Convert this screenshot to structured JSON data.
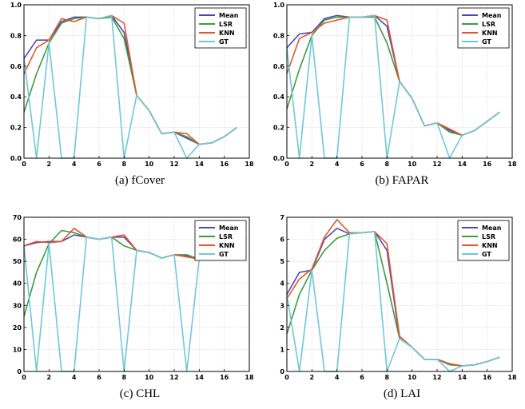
{
  "chart_data": [
    {
      "type": "line",
      "caption": "(a) fCover",
      "xlim": [
        0,
        18
      ],
      "ylim": [
        0,
        1.0
      ],
      "xticks": [
        0,
        2,
        4,
        6,
        8,
        10,
        12,
        14,
        16,
        18
      ],
      "yticks": [
        0.0,
        0.2,
        0.4,
        0.6,
        0.8,
        1.0
      ],
      "ytick_labels": [
        "0.0",
        "0.2",
        "0.4",
        "0.6",
        "0.8",
        "1.0"
      ],
      "legend": "top-right",
      "grid": true,
      "series": [
        {
          "name": "Mean",
          "color": "#4a4ab8",
          "x": [
            0,
            1,
            2,
            3,
            4,
            5,
            6,
            7,
            8,
            9,
            10,
            11,
            12,
            13,
            14,
            15,
            16,
            17
          ],
          "y": [
            0.65,
            0.77,
            0.77,
            0.89,
            0.92,
            0.92,
            0.91,
            0.93,
            0.82,
            0.41,
            0.31,
            0.16,
            0.17,
            0.13,
            0.09,
            0.1,
            0.14,
            0.2
          ]
        },
        {
          "name": "LSR",
          "color": "#3f9a3f",
          "x": [
            0,
            1,
            2,
            3,
            4,
            5,
            6,
            7,
            8,
            9,
            10,
            11,
            12,
            13,
            14,
            15,
            16,
            17
          ],
          "y": [
            0.3,
            0.55,
            0.75,
            0.88,
            0.91,
            0.92,
            0.91,
            0.92,
            0.78,
            0.41,
            0.31,
            0.16,
            0.17,
            0.14,
            0.09,
            0.1,
            0.14,
            0.2
          ]
        },
        {
          "name": "KNN",
          "color": "#e4552f",
          "x": [
            0,
            1,
            2,
            3,
            4,
            5,
            6,
            7,
            8,
            9,
            10,
            11,
            12,
            13,
            14,
            15,
            16,
            17
          ],
          "y": [
            0.55,
            0.72,
            0.77,
            0.91,
            0.89,
            0.92,
            0.91,
            0.93,
            0.88,
            0.41,
            0.31,
            0.16,
            0.17,
            0.16,
            0.09,
            0.1,
            0.14,
            0.2
          ]
        },
        {
          "name": "GT",
          "color": "#6fc8d8",
          "x": [
            0,
            1,
            2,
            3,
            4,
            5,
            6,
            7,
            8,
            9,
            10,
            11,
            12,
            13,
            14,
            15,
            16,
            17
          ],
          "y": [
            0.65,
            0.0,
            0.75,
            0.0,
            0.0,
            0.92,
            0.91,
            0.93,
            0.0,
            0.41,
            0.31,
            0.16,
            0.17,
            0.0,
            0.09,
            0.1,
            0.14,
            0.2
          ]
        }
      ]
    },
    {
      "type": "line",
      "caption": "(b) FAPAR",
      "xlim": [
        0,
        18
      ],
      "ylim": [
        0,
        1.0
      ],
      "xticks": [
        0,
        2,
        4,
        6,
        8,
        10,
        12,
        14,
        16,
        18
      ],
      "yticks": [
        0.0,
        0.2,
        0.4,
        0.6,
        0.8,
        1.0
      ],
      "ytick_labels": [
        "0.0",
        "0.2",
        "0.4",
        "0.6",
        "0.8",
        "1.0"
      ],
      "legend": "top-right",
      "grid": true,
      "series": [
        {
          "name": "Mean",
          "color": "#4a4ab8",
          "x": [
            0,
            1,
            2,
            3,
            4,
            5,
            6,
            7,
            8,
            9,
            10,
            11,
            12,
            13,
            14,
            15,
            16,
            17
          ],
          "y": [
            0.72,
            0.81,
            0.82,
            0.91,
            0.93,
            0.92,
            0.92,
            0.93,
            0.86,
            0.5,
            0.39,
            0.21,
            0.23,
            0.18,
            0.15,
            0.18,
            0.24,
            0.3
          ]
        },
        {
          "name": "LSR",
          "color": "#3f9a3f",
          "x": [
            0,
            1,
            2,
            3,
            4,
            5,
            6,
            7,
            8,
            9,
            10,
            11,
            12,
            13,
            14,
            15,
            16,
            17
          ],
          "y": [
            0.32,
            0.58,
            0.8,
            0.9,
            0.92,
            0.92,
            0.92,
            0.92,
            0.75,
            0.5,
            0.39,
            0.21,
            0.23,
            0.17,
            0.15,
            0.18,
            0.24,
            0.3
          ]
        },
        {
          "name": "KNN",
          "color": "#e4552f",
          "x": [
            0,
            1,
            2,
            3,
            4,
            5,
            6,
            7,
            8,
            9,
            10,
            11,
            12,
            13,
            14,
            15,
            16,
            17
          ],
          "y": [
            0.55,
            0.78,
            0.82,
            0.88,
            0.9,
            0.92,
            0.92,
            0.93,
            0.9,
            0.5,
            0.39,
            0.21,
            0.23,
            0.19,
            0.15,
            0.18,
            0.24,
            0.3
          ]
        },
        {
          "name": "GT",
          "color": "#6fc8d8",
          "x": [
            0,
            1,
            2,
            3,
            4,
            5,
            6,
            7,
            8,
            9,
            10,
            11,
            12,
            13,
            14,
            15,
            16,
            17
          ],
          "y": [
            0.72,
            0.0,
            0.8,
            0.0,
            0.0,
            0.92,
            0.92,
            0.93,
            0.0,
            0.5,
            0.39,
            0.21,
            0.23,
            0.0,
            0.15,
            0.18,
            0.24,
            0.3
          ]
        }
      ]
    },
    {
      "type": "line",
      "caption": "(c) CHL",
      "xlim": [
        0,
        18
      ],
      "ylim": [
        0,
        70
      ],
      "xticks": [
        0,
        2,
        4,
        6,
        8,
        10,
        12,
        14,
        16,
        18
      ],
      "yticks": [
        0,
        10,
        20,
        30,
        40,
        50,
        60,
        70
      ],
      "ytick_labels": [
        "0",
        "10",
        "20",
        "30",
        "40",
        "50",
        "60",
        "70"
      ],
      "legend": "top-right",
      "grid": true,
      "series": [
        {
          "name": "Mean",
          "color": "#4a4ab8",
          "x": [
            0,
            1,
            2,
            3,
            4,
            5,
            6,
            7,
            8,
            9,
            10,
            11,
            12,
            13,
            14,
            15,
            16,
            17
          ],
          "y": [
            57,
            58.5,
            59,
            59,
            62,
            61,
            60,
            61,
            61,
            55,
            54,
            51.5,
            53,
            52.5,
            51,
            51,
            51,
            51
          ]
        },
        {
          "name": "LSR",
          "color": "#3f9a3f",
          "x": [
            0,
            1,
            2,
            3,
            4,
            5,
            6,
            7,
            8,
            9,
            10,
            11,
            12,
            13,
            14,
            15,
            16,
            17
          ],
          "y": [
            25,
            45,
            58,
            64,
            63,
            61,
            60,
            61,
            57,
            55,
            54,
            51.5,
            53,
            53,
            51,
            51,
            51,
            51
          ]
        },
        {
          "name": "KNN",
          "color": "#e4552f",
          "x": [
            0,
            1,
            2,
            3,
            4,
            5,
            6,
            7,
            8,
            9,
            10,
            11,
            12,
            13,
            14,
            15,
            16,
            17
          ],
          "y": [
            57,
            59,
            58.5,
            59,
            65,
            61,
            60,
            61,
            62,
            55,
            54,
            51.5,
            53,
            52,
            51,
            51,
            51,
            51
          ]
        },
        {
          "name": "GT",
          "color": "#6fc8d8",
          "x": [
            0,
            1,
            2,
            3,
            4,
            5,
            6,
            7,
            8,
            9,
            10,
            11,
            12,
            13,
            14,
            15,
            16,
            17
          ],
          "y": [
            57,
            0,
            58,
            0,
            0,
            61,
            60,
            61,
            0,
            55,
            54,
            51.5,
            53,
            0,
            51,
            51,
            51,
            51
          ]
        }
      ]
    },
    {
      "type": "line",
      "caption": "(d) LAI",
      "xlim": [
        0,
        18
      ],
      "ylim": [
        0,
        7
      ],
      "xticks": [
        0,
        2,
        4,
        6,
        8,
        10,
        12,
        14,
        16,
        18
      ],
      "yticks": [
        0,
        1,
        2,
        3,
        4,
        5,
        6,
        7
      ],
      "ytick_labels": [
        "0",
        "1",
        "2",
        "3",
        "4",
        "5",
        "6",
        "7"
      ],
      "legend": "top-right",
      "grid": true,
      "series": [
        {
          "name": "Mean",
          "color": "#4a4ab8",
          "x": [
            0,
            1,
            2,
            3,
            4,
            5,
            6,
            7,
            8,
            9,
            10,
            11,
            12,
            13,
            14,
            15,
            16,
            17
          ],
          "y": [
            3.5,
            4.5,
            4.6,
            6.0,
            6.5,
            6.25,
            6.3,
            6.35,
            5.5,
            1.5,
            1.1,
            0.55,
            0.55,
            0.35,
            0.25,
            0.3,
            0.45,
            0.65
          ]
        },
        {
          "name": "LSR",
          "color": "#3f9a3f",
          "x": [
            0,
            1,
            2,
            3,
            4,
            5,
            6,
            7,
            8,
            9,
            10,
            11,
            12,
            13,
            14,
            15,
            16,
            17
          ],
          "y": [
            1.7,
            3.5,
            4.6,
            5.5,
            6.05,
            6.25,
            6.3,
            6.35,
            4.0,
            1.5,
            1.1,
            0.55,
            0.55,
            0.3,
            0.25,
            0.3,
            0.45,
            0.65
          ]
        },
        {
          "name": "KNN",
          "color": "#e4552f",
          "x": [
            0,
            1,
            2,
            3,
            4,
            5,
            6,
            7,
            8,
            9,
            10,
            11,
            12,
            13,
            14,
            15,
            16,
            17
          ],
          "y": [
            3.3,
            4.2,
            4.65,
            6.1,
            6.9,
            6.3,
            6.3,
            6.35,
            5.8,
            1.6,
            1.1,
            0.55,
            0.55,
            0.35,
            0.25,
            0.3,
            0.45,
            0.65
          ]
        },
        {
          "name": "GT",
          "color": "#6fc8d8",
          "x": [
            0,
            1,
            2,
            3,
            4,
            5,
            6,
            7,
            8,
            9,
            10,
            11,
            12,
            13,
            14,
            15,
            16,
            17
          ],
          "y": [
            3.5,
            0,
            4.6,
            0,
            0,
            6.25,
            6.3,
            6.35,
            0,
            1.5,
            1.1,
            0.55,
            0.55,
            0,
            0.25,
            0.3,
            0.45,
            0.65
          ]
        }
      ]
    }
  ]
}
